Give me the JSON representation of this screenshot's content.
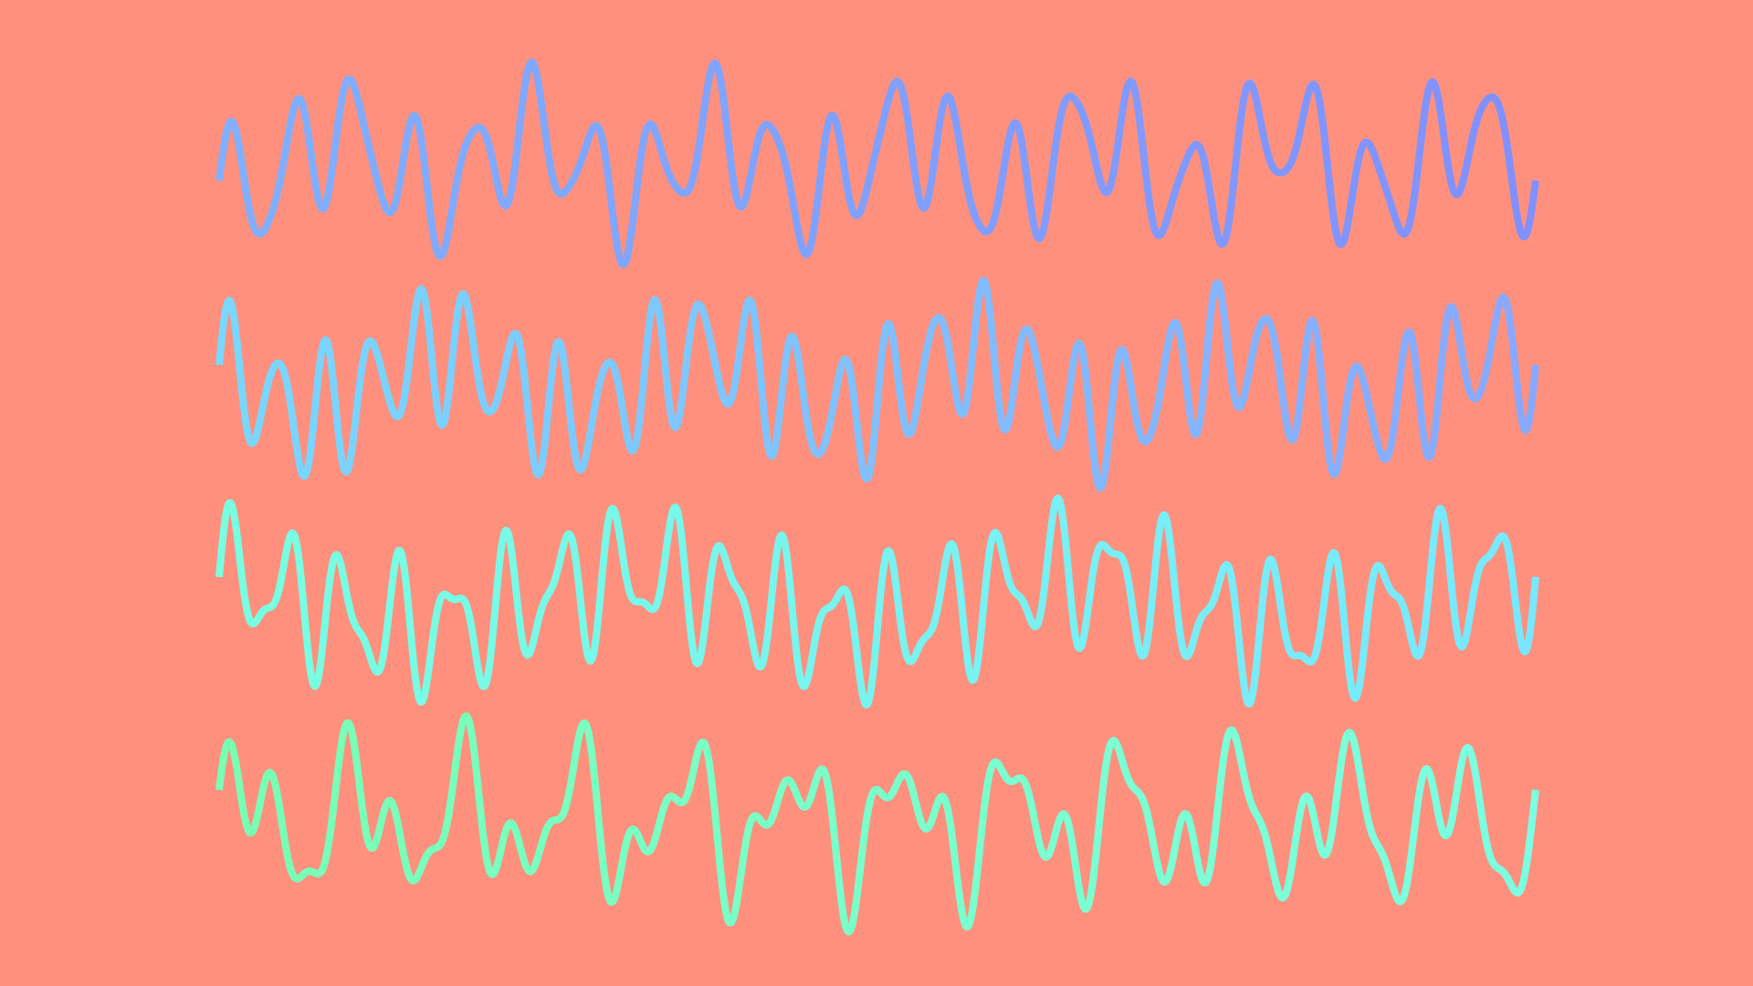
{
  "background": "#ff907e",
  "waves": [
    {
      "name": "wave-1",
      "gradient": [
        "#80b0ff",
        "#8090ff"
      ],
      "components": [
        {
          "cycles": 22,
          "amp": 0.55,
          "phase": 0.0
        },
        {
          "cycles": 7,
          "amp": 0.3,
          "phase": 0.6
        },
        {
          "cycles": 35,
          "amp": 0.15,
          "phase": 0.0
        }
      ]
    },
    {
      "name": "wave-2",
      "gradient": [
        "#78d8ff",
        "#88a8ff"
      ],
      "components": [
        {
          "cycles": 28,
          "amp": 0.55,
          "phase": 0.0
        },
        {
          "cycles": 5,
          "amp": 0.3,
          "phase": 0.4
        },
        {
          "cycles": 40,
          "amp": 0.15,
          "phase": 0.0
        }
      ]
    },
    {
      "name": "wave-3",
      "gradient": [
        "#78ffe0",
        "#78e8ff"
      ],
      "components": [
        {
          "cycles": 24,
          "amp": 0.5,
          "phase": 0.0
        },
        {
          "cycles": 3,
          "amp": 0.25,
          "phase": 0.3
        },
        {
          "cycles": 38,
          "amp": 0.25,
          "phase": 0.0
        }
      ]
    },
    {
      "name": "wave-4",
      "gradient": [
        "#78ffb4",
        "#7cffe2"
      ],
      "components": [
        {
          "cycles": 12,
          "amp": 0.45,
          "phase": 0.0
        },
        {
          "cycles": 22,
          "amp": 0.3,
          "phase": 0.2
        },
        {
          "cycles": 33,
          "amp": 0.25,
          "phase": 0.0
        }
      ]
    }
  ]
}
